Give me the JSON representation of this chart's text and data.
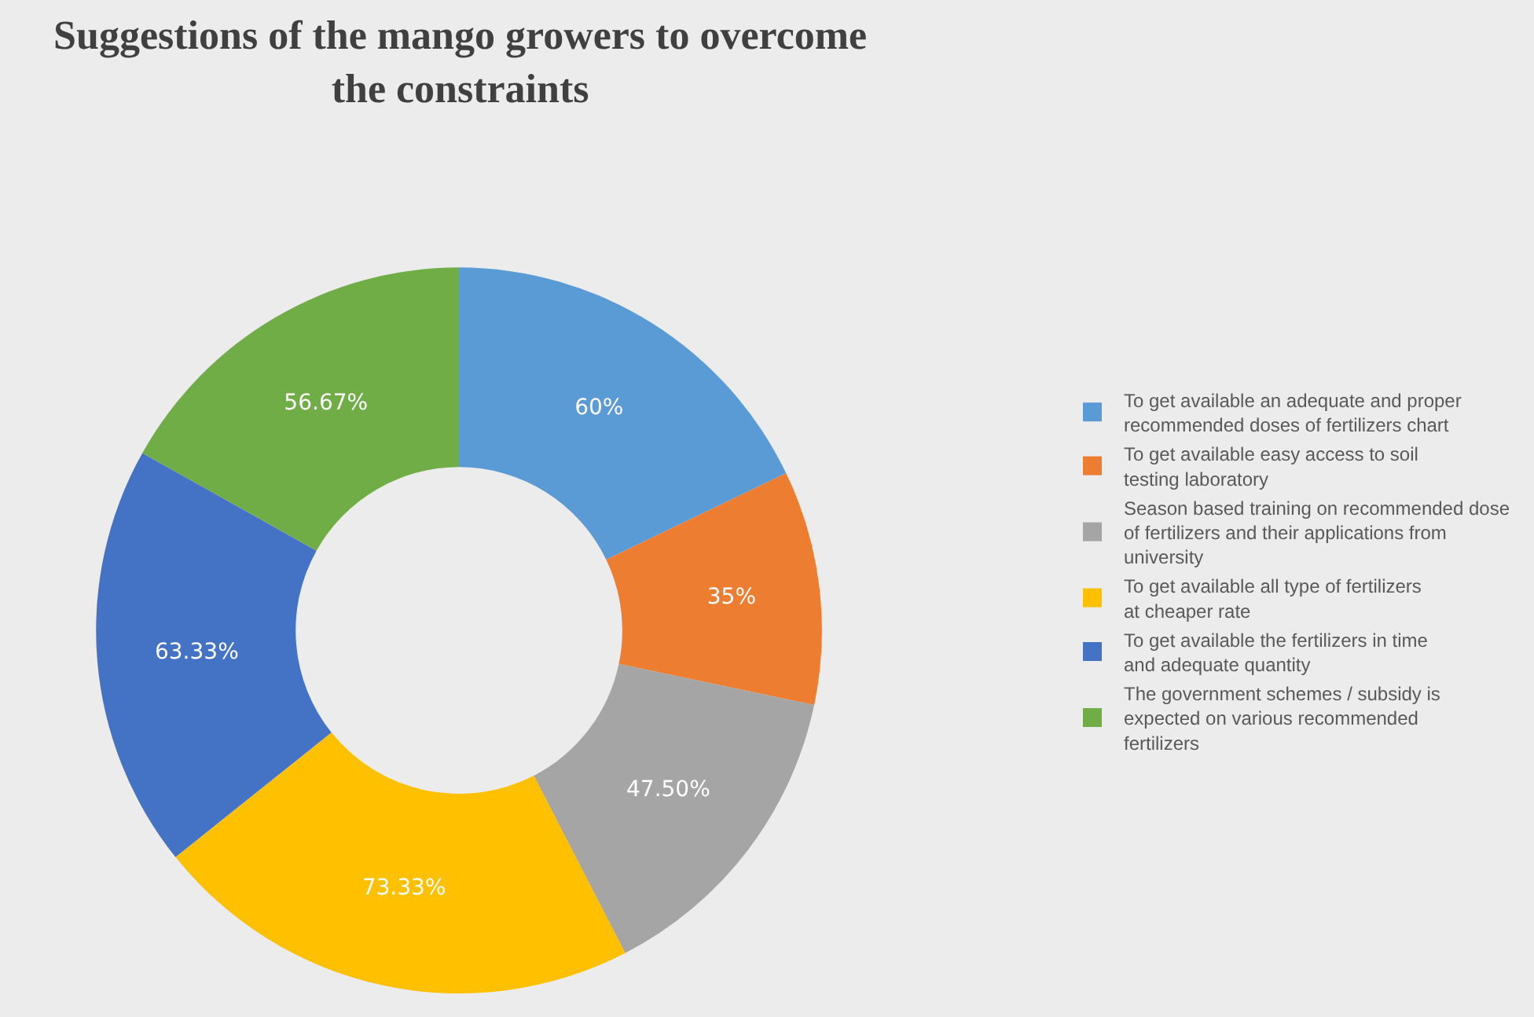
{
  "chart_data": {
    "type": "donut",
    "title": "Suggestions of the mango growers to overcome the constraints",
    "categories": [
      "To get available an adequate and proper recommended doses of fertilizers chart",
      "To get available easy access to soil testing laboratory",
      "Season based training on recommended dose of fertilizers and their applications from university",
      "To get available all type of fertilizers at cheaper rate",
      "To get available the fertilizers in time and adequate quantity",
      "The government schemes / subsidy is expected on various recommended fertilizers"
    ],
    "values": [
      60,
      35,
      47.5,
      73.33,
      63.33,
      56.67
    ],
    "value_labels": [
      "60%",
      "35%",
      "47.50%",
      "73.33%",
      "63.33%",
      "56.67%"
    ],
    "colors": [
      "#5b9bd5",
      "#ed7d31",
      "#a5a5a5",
      "#ffc000",
      "#4472c4",
      "#70ad47"
    ],
    "legend": "right"
  }
}
